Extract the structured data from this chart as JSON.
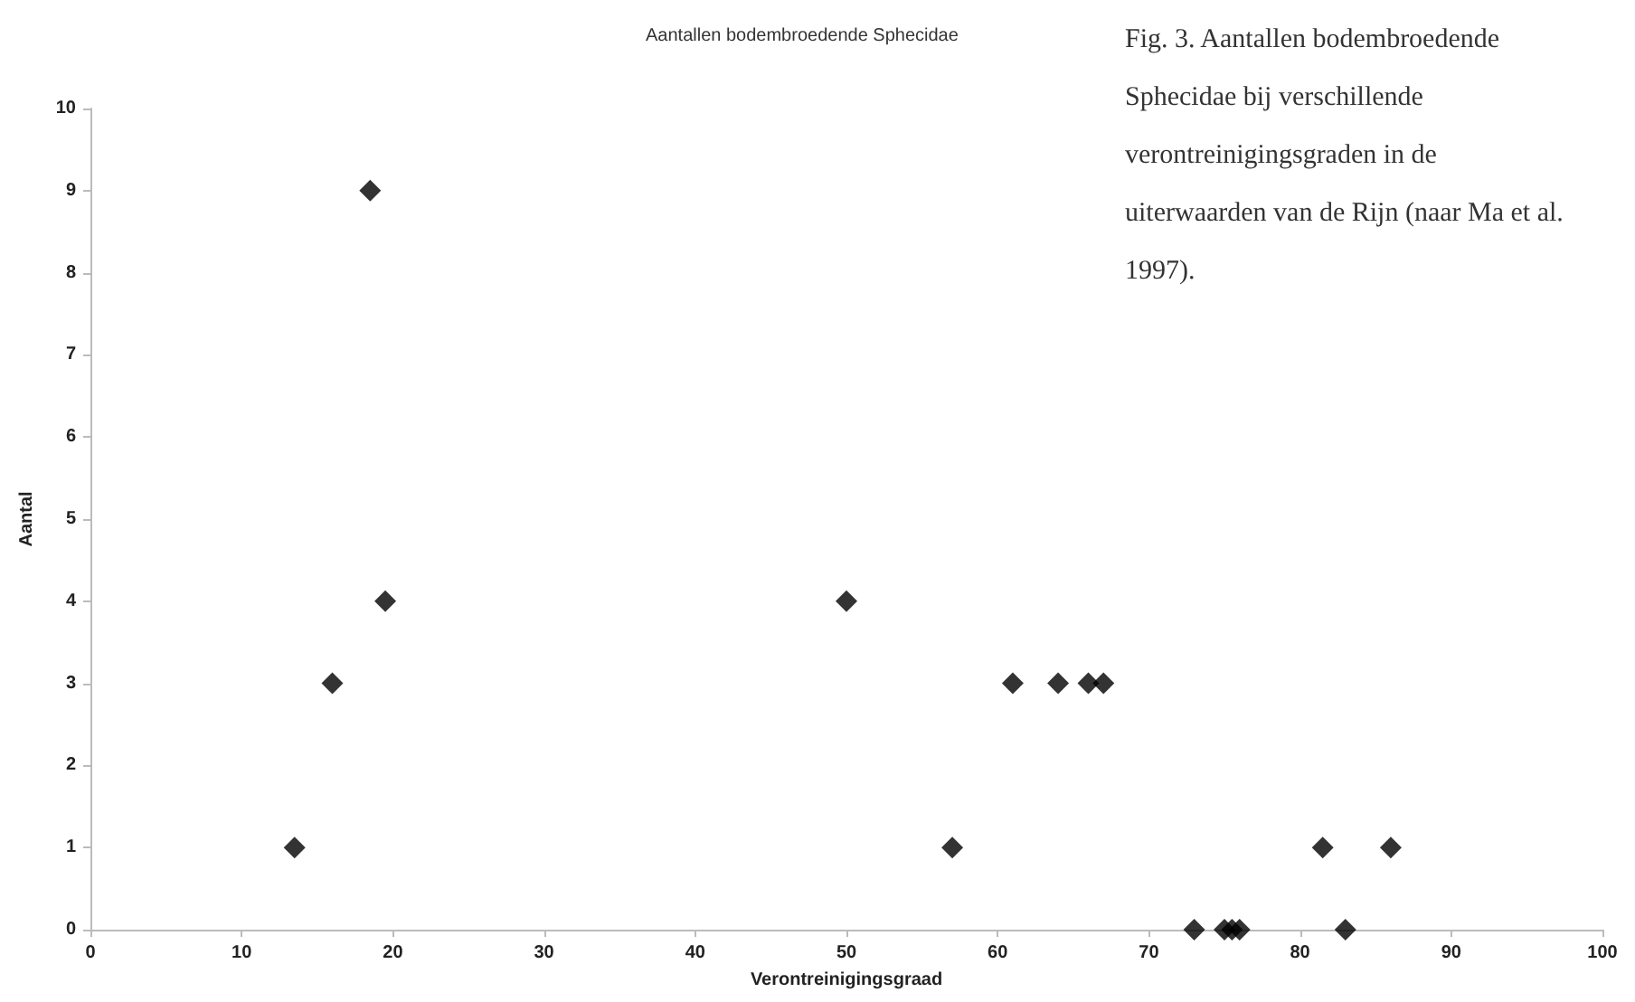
{
  "chart_data": {
    "type": "scatter",
    "title": "Aantallen bodembroedende Sphecidae",
    "xlabel": "Verontreinigingsgraad",
    "ylabel": "Aantal",
    "annotations": [
      "Fig. 3. Aantallen bodembroedende Sphecidae bij verschillende verontreinigingsgraden in de uiterwaarden van de Rijn (naar Ma et al. 1997)."
    ],
    "x": [
      13.5,
      16,
      18.5,
      19.5,
      50,
      57,
      61,
      64,
      66,
      67,
      73,
      75,
      75.5,
      76,
      81.5,
      83,
      86
    ],
    "series": [
      {
        "color": "#000000",
        "values": [
          1,
          3,
          9,
          4,
          4,
          1,
          3,
          3,
          3,
          3,
          0,
          0,
          0,
          0,
          1,
          0,
          1
        ]
      }
    ],
    "xlim": [
      0,
      100
    ],
    "xticks": [
      0,
      10,
      20,
      30,
      40,
      50,
      60,
      70,
      80,
      90,
      100
    ],
    "ylim": [
      0,
      10
    ],
    "yticks": [
      0,
      1,
      2,
      3,
      4,
      5,
      6,
      7,
      8,
      9,
      10
    ],
    "marker": "diamond"
  }
}
